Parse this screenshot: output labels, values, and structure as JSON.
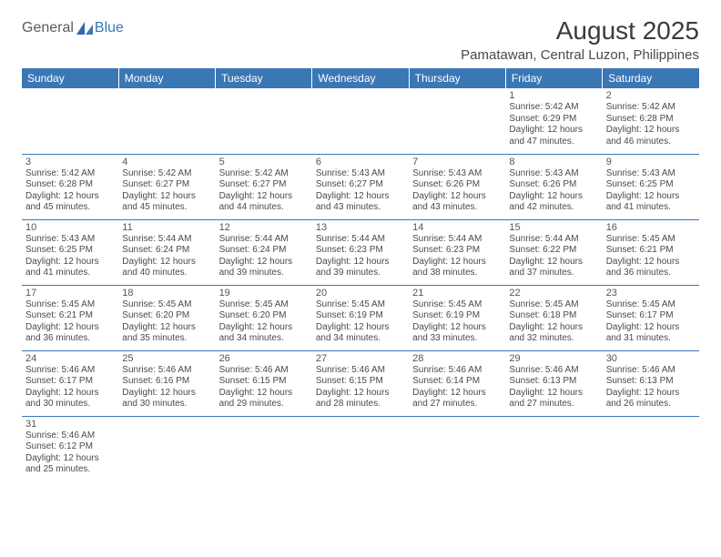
{
  "brand": {
    "text1": "General",
    "text2": "Blue"
  },
  "header": {
    "title": "August 2025",
    "location": "Pamatawan, Central Luzon, Philippines"
  },
  "style": {
    "header_bg": "#3a77b5",
    "header_text": "#ffffff",
    "cell_border": "#3a77b5",
    "text_color": "#4a4a4a",
    "title_fontsize": 28,
    "location_fontsize": 15,
    "dayhead_fontsize": 12,
    "cell_fontsize": 10,
    "columns": 7,
    "rows": 6
  },
  "weekdays": [
    "Sunday",
    "Monday",
    "Tuesday",
    "Wednesday",
    "Thursday",
    "Friday",
    "Saturday"
  ],
  "cells": [
    {
      "day": "",
      "lines": []
    },
    {
      "day": "",
      "lines": []
    },
    {
      "day": "",
      "lines": []
    },
    {
      "day": "",
      "lines": []
    },
    {
      "day": "",
      "lines": []
    },
    {
      "day": "1",
      "lines": [
        "Sunrise: 5:42 AM",
        "Sunset: 6:29 PM",
        "Daylight: 12 hours and 47 minutes."
      ]
    },
    {
      "day": "2",
      "lines": [
        "Sunrise: 5:42 AM",
        "Sunset: 6:28 PM",
        "Daylight: 12 hours and 46 minutes."
      ]
    },
    {
      "day": "3",
      "lines": [
        "Sunrise: 5:42 AM",
        "Sunset: 6:28 PM",
        "Daylight: 12 hours and 45 minutes."
      ]
    },
    {
      "day": "4",
      "lines": [
        "Sunrise: 5:42 AM",
        "Sunset: 6:27 PM",
        "Daylight: 12 hours and 45 minutes."
      ]
    },
    {
      "day": "5",
      "lines": [
        "Sunrise: 5:42 AM",
        "Sunset: 6:27 PM",
        "Daylight: 12 hours and 44 minutes."
      ]
    },
    {
      "day": "6",
      "lines": [
        "Sunrise: 5:43 AM",
        "Sunset: 6:27 PM",
        "Daylight: 12 hours and 43 minutes."
      ]
    },
    {
      "day": "7",
      "lines": [
        "Sunrise: 5:43 AM",
        "Sunset: 6:26 PM",
        "Daylight: 12 hours and 43 minutes."
      ]
    },
    {
      "day": "8",
      "lines": [
        "Sunrise: 5:43 AM",
        "Sunset: 6:26 PM",
        "Daylight: 12 hours and 42 minutes."
      ]
    },
    {
      "day": "9",
      "lines": [
        "Sunrise: 5:43 AM",
        "Sunset: 6:25 PM",
        "Daylight: 12 hours and 41 minutes."
      ]
    },
    {
      "day": "10",
      "lines": [
        "Sunrise: 5:43 AM",
        "Sunset: 6:25 PM",
        "Daylight: 12 hours and 41 minutes."
      ]
    },
    {
      "day": "11",
      "lines": [
        "Sunrise: 5:44 AM",
        "Sunset: 6:24 PM",
        "Daylight: 12 hours and 40 minutes."
      ]
    },
    {
      "day": "12",
      "lines": [
        "Sunrise: 5:44 AM",
        "Sunset: 6:24 PM",
        "Daylight: 12 hours and 39 minutes."
      ]
    },
    {
      "day": "13",
      "lines": [
        "Sunrise: 5:44 AM",
        "Sunset: 6:23 PM",
        "Daylight: 12 hours and 39 minutes."
      ]
    },
    {
      "day": "14",
      "lines": [
        "Sunrise: 5:44 AM",
        "Sunset: 6:23 PM",
        "Daylight: 12 hours and 38 minutes."
      ]
    },
    {
      "day": "15",
      "lines": [
        "Sunrise: 5:44 AM",
        "Sunset: 6:22 PM",
        "Daylight: 12 hours and 37 minutes."
      ]
    },
    {
      "day": "16",
      "lines": [
        "Sunrise: 5:45 AM",
        "Sunset: 6:21 PM",
        "Daylight: 12 hours and 36 minutes."
      ]
    },
    {
      "day": "17",
      "lines": [
        "Sunrise: 5:45 AM",
        "Sunset: 6:21 PM",
        "Daylight: 12 hours and 36 minutes."
      ]
    },
    {
      "day": "18",
      "lines": [
        "Sunrise: 5:45 AM",
        "Sunset: 6:20 PM",
        "Daylight: 12 hours and 35 minutes."
      ]
    },
    {
      "day": "19",
      "lines": [
        "Sunrise: 5:45 AM",
        "Sunset: 6:20 PM",
        "Daylight: 12 hours and 34 minutes."
      ]
    },
    {
      "day": "20",
      "lines": [
        "Sunrise: 5:45 AM",
        "Sunset: 6:19 PM",
        "Daylight: 12 hours and 34 minutes."
      ]
    },
    {
      "day": "21",
      "lines": [
        "Sunrise: 5:45 AM",
        "Sunset: 6:19 PM",
        "Daylight: 12 hours and 33 minutes."
      ]
    },
    {
      "day": "22",
      "lines": [
        "Sunrise: 5:45 AM",
        "Sunset: 6:18 PM",
        "Daylight: 12 hours and 32 minutes."
      ]
    },
    {
      "day": "23",
      "lines": [
        "Sunrise: 5:45 AM",
        "Sunset: 6:17 PM",
        "Daylight: 12 hours and 31 minutes."
      ]
    },
    {
      "day": "24",
      "lines": [
        "Sunrise: 5:46 AM",
        "Sunset: 6:17 PM",
        "Daylight: 12 hours and 30 minutes."
      ]
    },
    {
      "day": "25",
      "lines": [
        "Sunrise: 5:46 AM",
        "Sunset: 6:16 PM",
        "Daylight: 12 hours and 30 minutes."
      ]
    },
    {
      "day": "26",
      "lines": [
        "Sunrise: 5:46 AM",
        "Sunset: 6:15 PM",
        "Daylight: 12 hours and 29 minutes."
      ]
    },
    {
      "day": "27",
      "lines": [
        "Sunrise: 5:46 AM",
        "Sunset: 6:15 PM",
        "Daylight: 12 hours and 28 minutes."
      ]
    },
    {
      "day": "28",
      "lines": [
        "Sunrise: 5:46 AM",
        "Sunset: 6:14 PM",
        "Daylight: 12 hours and 27 minutes."
      ]
    },
    {
      "day": "29",
      "lines": [
        "Sunrise: 5:46 AM",
        "Sunset: 6:13 PM",
        "Daylight: 12 hours and 27 minutes."
      ]
    },
    {
      "day": "30",
      "lines": [
        "Sunrise: 5:46 AM",
        "Sunset: 6:13 PM",
        "Daylight: 12 hours and 26 minutes."
      ]
    },
    {
      "day": "31",
      "lines": [
        "Sunrise: 5:46 AM",
        "Sunset: 6:12 PM",
        "Daylight: 12 hours and 25 minutes."
      ]
    },
    {
      "day": "",
      "lines": []
    },
    {
      "day": "",
      "lines": []
    },
    {
      "day": "",
      "lines": []
    },
    {
      "day": "",
      "lines": []
    },
    {
      "day": "",
      "lines": []
    },
    {
      "day": "",
      "lines": []
    }
  ]
}
